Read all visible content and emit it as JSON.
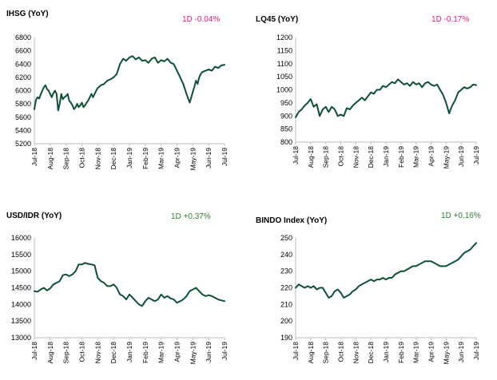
{
  "colors": {
    "line": "#0f5132",
    "negative": "#e8197d",
    "positive": "#2e7d32",
    "axis": "#bdbdbd"
  },
  "chart_data": [
    {
      "type": "line",
      "title": "IHSG (YoY)",
      "change_label": "1D -0.04%",
      "change_sign": "negative",
      "y_ticks": [
        "6800",
        "6600",
        "6400",
        "6200",
        "6000",
        "5800",
        "5600",
        "5400",
        "5200"
      ],
      "ylim": [
        5200,
        6800
      ],
      "categories": [
        "Jul-18",
        "Aug-18",
        "Sep-18",
        "Oct-18",
        "Nov-18",
        "Dec-18",
        "Jan-19",
        "Feb-19",
        "Mar-19",
        "Apr-19",
        "May-19",
        "Jun-19",
        "Jul-19"
      ],
      "series": [
        {
          "x": [
            0,
            0.1,
            0.2,
            0.3,
            0.4,
            0.5,
            0.6,
            0.7,
            0.8,
            0.9,
            1.0,
            1.1,
            1.2,
            1.3,
            1.4,
            1.5,
            1.6,
            1.7,
            1.8,
            1.9,
            2.0,
            2.1,
            2.2,
            2.3,
            2.4,
            2.5,
            2.6,
            2.7,
            2.8,
            2.9,
            3.0,
            3.1,
            3.2,
            3.3,
            3.4,
            3.5,
            3.6,
            3.7,
            3.8,
            3.9,
            4.0,
            4.2,
            4.4,
            4.6,
            4.8,
            5.0,
            5.2,
            5.4,
            5.6,
            5.8,
            6.0,
            6.2,
            6.4,
            6.6,
            6.8,
            7.0,
            7.2,
            7.4,
            7.6,
            7.8,
            8.0,
            8.2,
            8.4,
            8.6,
            8.8,
            9.0,
            9.2,
            9.4,
            9.6,
            9.8,
            9.9,
            10.0,
            10.1,
            10.2,
            10.3,
            10.4,
            10.5,
            10.6,
            10.8,
            11.0,
            11.2,
            11.4,
            11.6,
            11.8,
            12.0
          ],
          "y": [
            5720,
            5860,
            5900,
            5880,
            5940,
            6000,
            6050,
            6080,
            6020,
            6000,
            5950,
            5900,
            5960,
            6000,
            5950,
            5700,
            5800,
            5950,
            5870,
            5900,
            5920,
            5950,
            5850,
            5820,
            5780,
            5720,
            5750,
            5800,
            5750,
            5780,
            5820,
            5750,
            5780,
            5820,
            5850,
            5900,
            5950,
            5900,
            5950,
            6000,
            6040,
            6080,
            6100,
            6150,
            6170,
            6200,
            6250,
            6400,
            6480,
            6450,
            6500,
            6520,
            6470,
            6500,
            6450,
            6460,
            6420,
            6480,
            6500,
            6420,
            6460,
            6440,
            6480,
            6420,
            6400,
            6300,
            6200,
            6100,
            5950,
            5820,
            5900,
            5980,
            6060,
            6150,
            6100,
            6200,
            6250,
            6280,
            6300,
            6320,
            6300,
            6360,
            6340,
            6380,
            6390
          ]
        }
      ]
    },
    {
      "type": "line",
      "title": "LQ45 (YoY)",
      "change_label": "1D -0.17%",
      "change_sign": "negative",
      "y_ticks": [
        "1200",
        "1150",
        "1100",
        "1050",
        "1000",
        "950",
        "900",
        "850",
        "800"
      ],
      "ylim": [
        800,
        1200
      ],
      "categories": [
        "Jul-18",
        "Aug-18",
        "Sep-18",
        "Oct-18",
        "Nov-18",
        "Dec-18",
        "Jan-19",
        "Feb-19",
        "Mar-19",
        "Apr-19",
        "May-19",
        "Jun-19",
        "Jul-19"
      ],
      "series": [
        {
          "x": [
            0,
            0.2,
            0.4,
            0.6,
            0.8,
            1.0,
            1.2,
            1.4,
            1.6,
            1.8,
            2.0,
            2.2,
            2.4,
            2.6,
            2.8,
            3.0,
            3.2,
            3.4,
            3.6,
            3.8,
            4.0,
            4.2,
            4.4,
            4.6,
            4.8,
            5.0,
            5.2,
            5.4,
            5.6,
            5.8,
            6.0,
            6.2,
            6.4,
            6.6,
            6.8,
            7.0,
            7.2,
            7.4,
            7.6,
            7.8,
            8.0,
            8.2,
            8.4,
            8.6,
            8.8,
            9.0,
            9.2,
            9.4,
            9.6,
            9.8,
            10.0,
            10.2,
            10.4,
            10.6,
            10.8,
            11.0,
            11.2,
            11.4,
            11.6,
            11.8,
            12.0
          ],
          "y": [
            895,
            915,
            925,
            940,
            950,
            965,
            935,
            945,
            900,
            925,
            935,
            915,
            935,
            925,
            900,
            905,
            900,
            930,
            925,
            940,
            950,
            960,
            970,
            960,
            975,
            990,
            985,
            1000,
            1000,
            1015,
            1010,
            1020,
            1030,
            1025,
            1040,
            1030,
            1020,
            1025,
            1015,
            1030,
            1020,
            1025,
            1010,
            1025,
            1030,
            1020,
            1015,
            1020,
            1000,
            980,
            950,
            910,
            940,
            960,
            990,
            1000,
            1010,
            1005,
            1010,
            1020,
            1018
          ]
        }
      ]
    },
    {
      "type": "line",
      "title": "USD/IDR (YoY)",
      "change_label": "1D +0.37%",
      "change_sign": "positive",
      "y_ticks": [
        "16000",
        "15500",
        "15000",
        "14500",
        "14000",
        "13500",
        "13000"
      ],
      "ylim": [
        13000,
        16000
      ],
      "categories": [
        "Jul-18",
        "Aug-18",
        "Sep-18",
        "Oct-18",
        "Nov-18",
        "Dec-18",
        "Jan-19",
        "Feb-19",
        "Mar-19",
        "Apr-19",
        "May-19",
        "Jun-19",
        "Jul-19"
      ],
      "series": [
        {
          "x": [
            0,
            0.2,
            0.4,
            0.6,
            0.8,
            1.0,
            1.2,
            1.4,
            1.6,
            1.8,
            2.0,
            2.2,
            2.4,
            2.6,
            2.8,
            3.0,
            3.2,
            3.4,
            3.6,
            3.8,
            4.0,
            4.2,
            4.4,
            4.6,
            4.8,
            5.0,
            5.2,
            5.4,
            5.6,
            5.8,
            6.0,
            6.2,
            6.4,
            6.6,
            6.8,
            7.0,
            7.2,
            7.4,
            7.6,
            7.8,
            8.0,
            8.2,
            8.4,
            8.6,
            8.8,
            9.0,
            9.2,
            9.4,
            9.6,
            9.8,
            10.0,
            10.2,
            10.4,
            10.6,
            10.8,
            11.0,
            11.2,
            11.4,
            11.6,
            11.8,
            12.0
          ],
          "y": [
            14400,
            14380,
            14450,
            14500,
            14420,
            14480,
            14600,
            14650,
            14700,
            14880,
            14900,
            14850,
            14900,
            15000,
            15200,
            15200,
            15250,
            15220,
            15200,
            15180,
            14800,
            14700,
            14650,
            14550,
            14550,
            14600,
            14500,
            14300,
            14250,
            14150,
            14300,
            14200,
            14100,
            14000,
            13950,
            14100,
            14200,
            14150,
            14100,
            14150,
            14300,
            14200,
            14250,
            14180,
            14150,
            14050,
            14100,
            14150,
            14250,
            14400,
            14450,
            14500,
            14400,
            14300,
            14250,
            14280,
            14250,
            14200,
            14150,
            14120,
            14100
          ]
        }
      ]
    },
    {
      "type": "line",
      "title": "BINDO Index (YoY)",
      "change_label": "1D +0.16%",
      "change_sign": "positive",
      "y_ticks": [
        "250",
        "240",
        "230",
        "220",
        "210",
        "200",
        "190"
      ],
      "ylim": [
        190,
        250
      ],
      "categories": [
        "Jul-18",
        "Aug-18",
        "Sep-18",
        "Oct-18",
        "Nov-18",
        "Dec-18",
        "Jan-19",
        "Feb-19",
        "Mar-19",
        "Apr-19",
        "May-19",
        "Jun-19",
        "Jul-19"
      ],
      "series": [
        {
          "x": [
            0,
            0.2,
            0.4,
            0.6,
            0.8,
            1.0,
            1.2,
            1.4,
            1.6,
            1.8,
            2.0,
            2.2,
            2.4,
            2.6,
            2.8,
            3.0,
            3.2,
            3.4,
            3.6,
            3.8,
            4.0,
            4.2,
            4.4,
            4.6,
            4.8,
            5.0,
            5.2,
            5.4,
            5.6,
            5.8,
            6.0,
            6.2,
            6.4,
            6.6,
            6.8,
            7.0,
            7.2,
            7.4,
            7.6,
            7.8,
            8.0,
            8.2,
            8.4,
            8.6,
            8.8,
            9.0,
            9.2,
            9.4,
            9.6,
            9.8,
            10.0,
            10.2,
            10.4,
            10.6,
            10.8,
            11.0,
            11.2,
            11.4,
            11.6,
            11.8,
            12.0
          ],
          "y": [
            220,
            222,
            221,
            220,
            221,
            220,
            221,
            219,
            220,
            220,
            217,
            214,
            215,
            218,
            219,
            217,
            214,
            215,
            216,
            218,
            219,
            221,
            222,
            223,
            224,
            225,
            224,
            225,
            225,
            226,
            225,
            226,
            226,
            228,
            229,
            230,
            230,
            231,
            232,
            233,
            233,
            234,
            235,
            236,
            236,
            236,
            235,
            234,
            233,
            233,
            233,
            234,
            235,
            236,
            237,
            239,
            241,
            242,
            243,
            245,
            247
          ]
        }
      ]
    }
  ]
}
